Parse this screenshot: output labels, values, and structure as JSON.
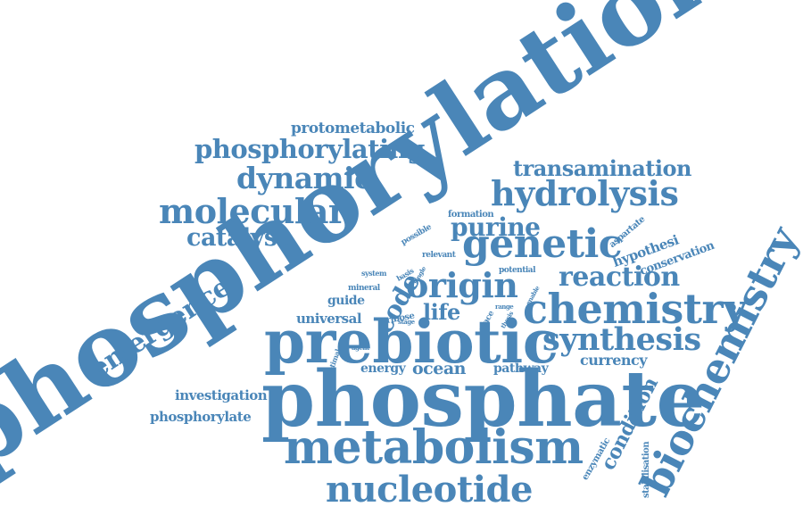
{
  "colors": {
    "word": "#4a86b8",
    "background": "#ffffff"
  },
  "words": [
    {
      "id": "phosphorylation",
      "text": "phosphorylation",
      "weight": 100,
      "angle": -33
    },
    {
      "id": "phosphate",
      "text": "phosphate",
      "weight": 80,
      "angle": 0
    },
    {
      "id": "prebiotic",
      "text": "prebiotic",
      "weight": 70,
      "angle": 0
    },
    {
      "id": "metabolism",
      "text": "metabolism",
      "weight": 55,
      "angle": 0
    },
    {
      "id": "biochemistry",
      "text": "biochemistry",
      "weight": 50,
      "angle": -63
    },
    {
      "id": "chemistry",
      "text": "chemistry",
      "weight": 45,
      "angle": 0
    },
    {
      "id": "nucleotide",
      "text": "nucleotide",
      "weight": 40,
      "angle": 0
    },
    {
      "id": "genetic",
      "text": "genetic",
      "weight": 40,
      "angle": 0
    },
    {
      "id": "origin",
      "text": "origin",
      "weight": 36,
      "angle": 0
    },
    {
      "id": "synthesis",
      "text": "synthesis",
      "weight": 34,
      "angle": 0
    },
    {
      "id": "hydrolysis",
      "text": "hydrolysis",
      "weight": 33,
      "angle": 0
    },
    {
      "id": "molecular",
      "text": "molecular",
      "weight": 33,
      "angle": 0
    },
    {
      "id": "reaction",
      "text": "reaction",
      "weight": 30,
      "angle": 0
    },
    {
      "id": "emergence",
      "text": "emergence",
      "weight": 30,
      "angle": -33
    },
    {
      "id": "dynamic",
      "text": "dynamic",
      "weight": 28,
      "angle": 0
    },
    {
      "id": "phosphorylating",
      "text": "phosphorylating",
      "weight": 26,
      "angle": 0
    },
    {
      "id": "catalyst",
      "text": "catalyst",
      "weight": 25,
      "angle": 0
    },
    {
      "id": "purine",
      "text": "purine",
      "weight": 25,
      "angle": 0
    },
    {
      "id": "transamination",
      "text": "transamination",
      "weight": 22,
      "angle": 0
    },
    {
      "id": "code",
      "text": "code",
      "weight": 24,
      "angle": -60
    },
    {
      "id": "life",
      "text": "life",
      "weight": 22,
      "angle": 0
    },
    {
      "id": "condition",
      "text": "condition",
      "weight": 20,
      "angle": -63
    },
    {
      "id": "protometabolic",
      "text": "protometabolic",
      "weight": 16,
      "angle": 0
    },
    {
      "id": "universal",
      "text": "universal",
      "weight": 15,
      "angle": 0
    },
    {
      "id": "ocean",
      "text": "ocean",
      "weight": 17,
      "angle": 0
    },
    {
      "id": "currency",
      "text": "currency",
      "weight": 15,
      "angle": 0
    },
    {
      "id": "hypothesi",
      "text": "hypothesi",
      "weight": 14,
      "angle": -20
    },
    {
      "id": "investigation",
      "text": "investigation",
      "weight": 14,
      "angle": 0
    },
    {
      "id": "phosphorylate",
      "text": "phosphorylate",
      "weight": 14,
      "angle": 0
    },
    {
      "id": "guide",
      "text": "guide",
      "weight": 13,
      "angle": 0
    },
    {
      "id": "energy",
      "text": "energy",
      "weight": 13,
      "angle": 0
    },
    {
      "id": "pathway",
      "text": "pathway",
      "weight": 13,
      "angle": 0
    },
    {
      "id": "conservation",
      "text": "conservation",
      "weight": 12,
      "angle": -20
    },
    {
      "id": "aspartate",
      "text": "aspartate",
      "weight": 9,
      "angle": -40
    },
    {
      "id": "stabilisation",
      "text": "stabilisation",
      "weight": 9,
      "angle": -90
    },
    {
      "id": "enzymatic",
      "text": "enzymatic",
      "weight": 9,
      "angle": -60
    },
    {
      "id": "formation",
      "text": "formation",
      "weight": 9,
      "angle": 0
    },
    {
      "id": "possible",
      "text": "possible",
      "weight": 8,
      "angle": -30
    },
    {
      "id": "relevant",
      "text": "relevant",
      "weight": 8,
      "angle": 0
    },
    {
      "id": "system",
      "text": "system",
      "weight": 7,
      "angle": 0
    },
    {
      "id": "basis",
      "text": "basis",
      "weight": 7,
      "angle": -30
    },
    {
      "id": "single",
      "text": "single",
      "weight": 6,
      "angle": -60
    },
    {
      "id": "potential",
      "text": "potential",
      "weight": 8,
      "angle": 0
    },
    {
      "id": "mineral",
      "text": "mineral",
      "weight": 8,
      "angle": 0
    },
    {
      "id": "ribose",
      "text": "ribose",
      "weight": 9,
      "angle": -10
    },
    {
      "id": "range",
      "text": "range",
      "weight": 6,
      "angle": 0
    },
    {
      "id": "enable",
      "text": "enable",
      "weight": 6,
      "angle": -60
    },
    {
      "id": "stage",
      "text": "stage",
      "weight": 6,
      "angle": 0
    },
    {
      "id": "place",
      "text": "place",
      "weight": 8,
      "angle": -60
    },
    {
      "id": "thesis",
      "text": "thesis",
      "weight": 6,
      "angle": -60
    },
    {
      "id": "agent",
      "text": "agent",
      "weight": 6,
      "angle": 0
    },
    {
      "id": "optimal",
      "text": "optimal",
      "weight": 7,
      "angle": -70
    }
  ]
}
